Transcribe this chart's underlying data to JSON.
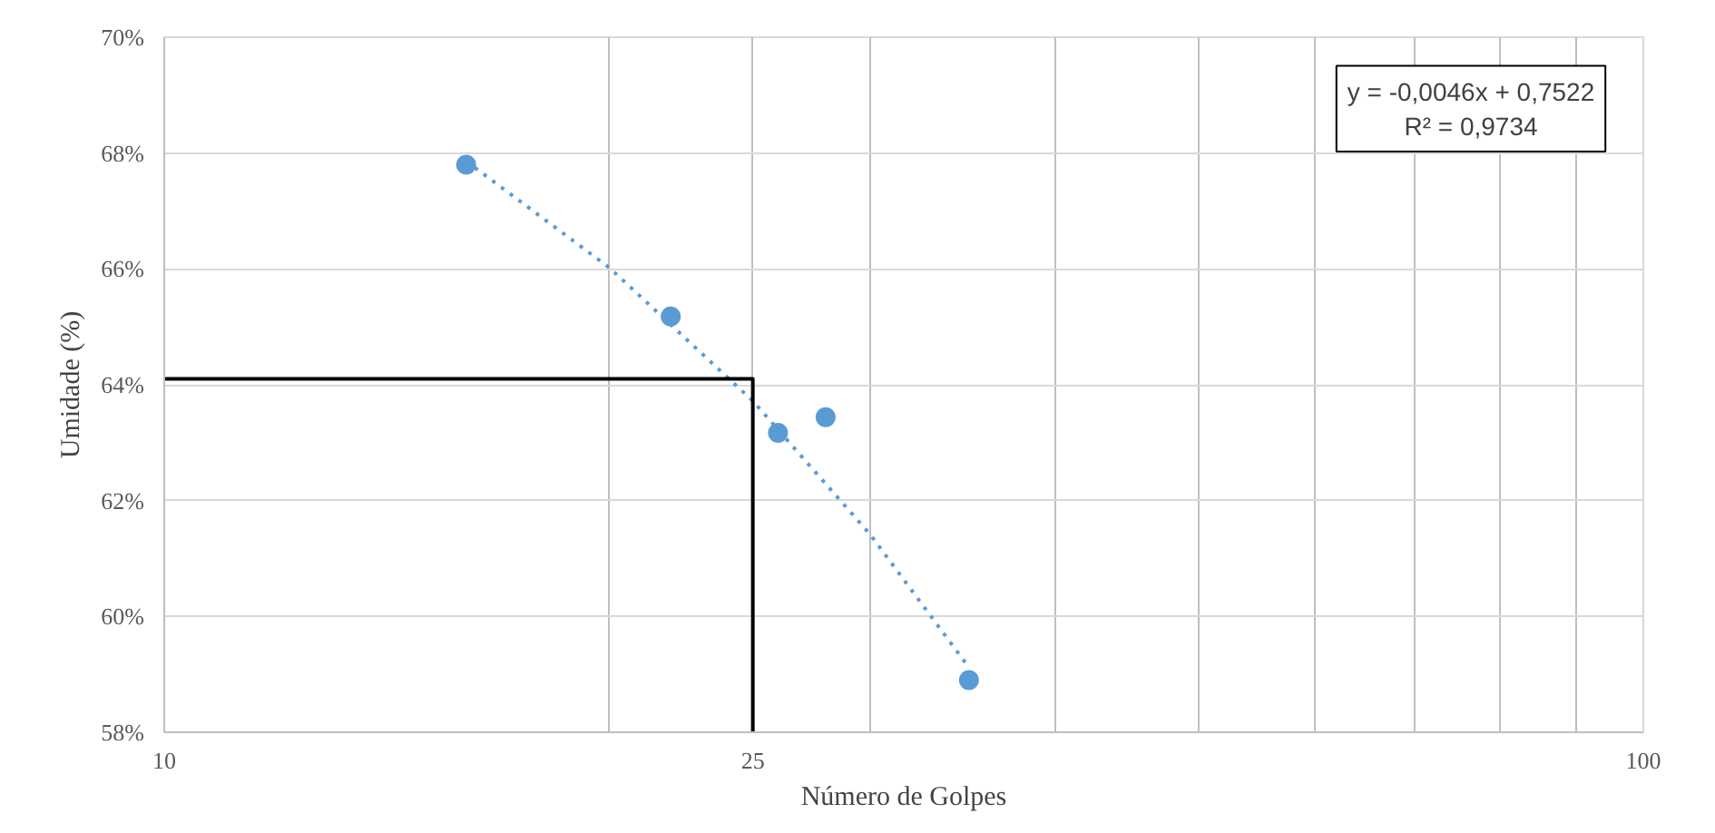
{
  "chart_data": {
    "type": "scatter",
    "xlabel": "Número de Golpes",
    "ylabel": "Umidade (%)",
    "log": "x",
    "grid": true,
    "xlim": [
      10,
      100
    ],
    "xticks": [
      10,
      {
        "value": 20,
        "label": null
      },
      25,
      {
        "value": 30,
        "label": null
      },
      {
        "value": 40,
        "label": null
      },
      {
        "value": 50,
        "label": null
      },
      {
        "value": 60,
        "label": null
      },
      {
        "value": 70,
        "label": null
      },
      {
        "value": 80,
        "label": null
      },
      {
        "value": 90,
        "label": null
      },
      100
    ],
    "ylim": [
      58,
      70
    ],
    "yticks": [
      {
        "value": 58,
        "label": "58%"
      },
      {
        "value": 60,
        "label": "60%"
      },
      {
        "value": 62,
        "label": "62%"
      },
      {
        "value": 64,
        "label": "64%"
      },
      {
        "value": 66,
        "label": "66%"
      },
      {
        "value": 68,
        "label": "68%"
      },
      {
        "value": 70,
        "label": "70%"
      }
    ],
    "annotations": [
      "y = -0,0046x + 0,7522\nR² = 0,9734"
    ],
    "series": [
      {
        "color": "#5b9bd5",
        "marker": "circle",
        "x": [
          16,
          22,
          26,
          28,
          35
        ],
        "values": [
          67.8,
          65.18,
          63.17,
          63.44,
          58.9
        ]
      },
      {
        "type": "line",
        "color": "#5b9bd5",
        "line_style": "dotted",
        "marker": "none",
        "x": [
          16,
          20,
          25,
          30,
          35
        ],
        "values": [
          67.86,
          66.02,
          63.72,
          61.42,
          59.12
        ]
      },
      {
        "type": "line",
        "color": "#000000",
        "line_style": "solid",
        "marker": "none",
        "x": [
          10,
          25,
          25
        ],
        "values": [
          64.1,
          64.1,
          58
        ]
      }
    ]
  }
}
